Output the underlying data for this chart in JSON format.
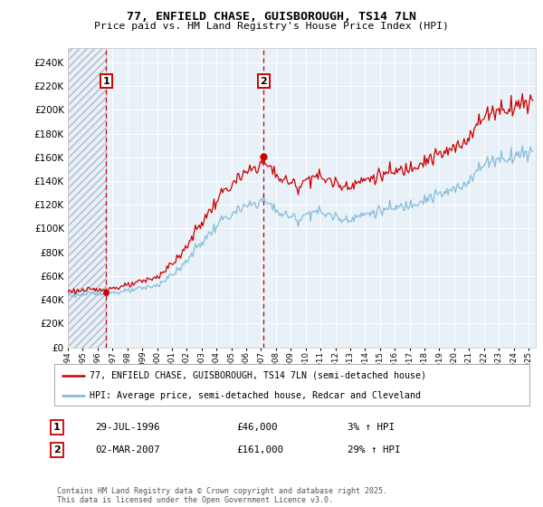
{
  "title": "77, ENFIELD CHASE, GUISBOROUGH, TS14 7LN",
  "subtitle": "Price paid vs. HM Land Registry's House Price Index (HPI)",
  "legend_line1": "77, ENFIELD CHASE, GUISBOROUGH, TS14 7LN (semi-detached house)",
  "legend_line2": "HPI: Average price, semi-detached house, Redcar and Cleveland",
  "annotation1_label": "1",
  "annotation1_date": "29-JUL-1996",
  "annotation1_price": "£46,000",
  "annotation1_hpi": "3% ↑ HPI",
  "annotation2_label": "2",
  "annotation2_date": "02-MAR-2007",
  "annotation2_price": "£161,000",
  "annotation2_hpi": "29% ↑ HPI",
  "footnote": "Contains HM Land Registry data © Crown copyright and database right 2025.\nThis data is licensed under the Open Government Licence v3.0.",
  "sale1_year": 1996.57,
  "sale1_price": 46000,
  "sale2_year": 2007.17,
  "sale2_price": 161000,
  "hpi_color": "#7ab8d9",
  "price_color": "#cc0000",
  "vline_color": "#cc0000",
  "plot_bg_color": "#e8f0f8",
  "ylim_min": 0,
  "ylim_max": 252000,
  "ytick_step": 20000,
  "xmin": 1994,
  "xmax": 2025.5
}
